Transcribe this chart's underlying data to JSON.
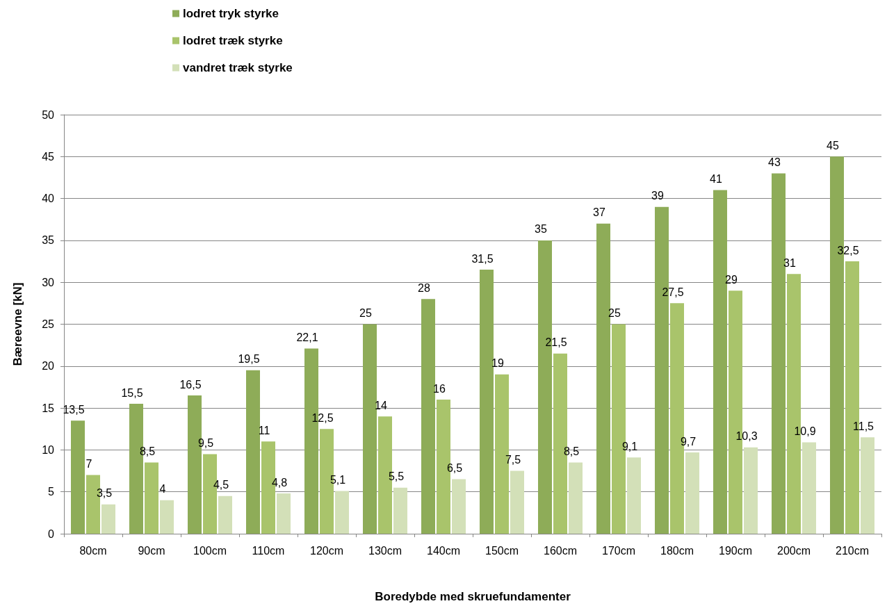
{
  "chart_data": {
    "type": "bar",
    "xlabel": "Boredybde med skruefundamenter",
    "ylabel": "Bæreevne [kN]",
    "categories": [
      "80cm",
      "90cm",
      "100cm",
      "110cm",
      "120cm",
      "130cm",
      "140cm",
      "150cm",
      "160cm",
      "170cm",
      "180cm",
      "190cm",
      "200cm",
      "210cm"
    ],
    "series": [
      {
        "name": "lodret tryk styrke",
        "color": "#8eac58",
        "values": [
          13.5,
          15.5,
          16.5,
          19.5,
          22.1,
          25,
          28,
          31.5,
          35,
          37,
          39,
          41,
          43,
          45
        ],
        "value_labels": [
          "13,5",
          "15,5",
          "16,5",
          "19,5",
          "22,1",
          "25",
          "28",
          "31,5",
          "35",
          "37",
          "39",
          "41",
          "43",
          "45"
        ]
      },
      {
        "name": "lodret træk styrke",
        "color": "#a9c46b",
        "values": [
          7,
          8.5,
          9.5,
          11,
          12.5,
          14,
          16,
          19,
          21.5,
          25,
          27.5,
          29,
          31,
          32.5
        ],
        "value_labels": [
          "7",
          "8,5",
          "9,5",
          "11",
          "12,5",
          "14",
          "16",
          "19",
          "21,5",
          "25",
          "27,5",
          "29",
          "31",
          "32,5"
        ]
      },
      {
        "name": "vandret træk styrke",
        "color": "#d3e0b8",
        "values": [
          3.5,
          4,
          4.5,
          4.8,
          5.1,
          5.5,
          6.5,
          7.5,
          8.5,
          9.1,
          9.7,
          10.3,
          10.9,
          11.5
        ],
        "value_labels": [
          "3,5",
          "4",
          "4,5",
          "4,8",
          "5,1",
          "5,5",
          "6,5",
          "7,5",
          "8,5",
          "9,1",
          "9,7",
          "10,3",
          "10,9",
          "11,5"
        ]
      }
    ],
    "ylim": [
      0,
      50
    ],
    "yticks": [
      0,
      5,
      10,
      15,
      20,
      25,
      30,
      35,
      40,
      45,
      50
    ],
    "grid": "y",
    "legend": "top"
  }
}
